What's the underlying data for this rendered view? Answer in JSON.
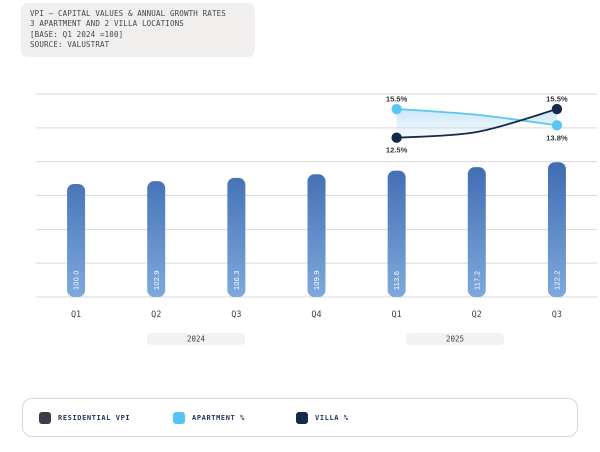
{
  "header": {
    "lines": [
      "VPI – CAPITAL VALUES & ANNUAL GROWTH RATES",
      "3 APARTMENT AND 2 VILLA LOCATIONS",
      "[BASE: Q1 2024 =100]",
      "SOURCE: VALUSTRAT"
    ]
  },
  "chart_data": {
    "type": "bar+line",
    "title": "VPI – CAPITAL VALUES & ANNUAL GROWTH RATES",
    "categories": [
      "Q1",
      "Q2",
      "Q3",
      "Q4",
      "Q1",
      "Q2",
      "Q3"
    ],
    "year_groups": [
      {
        "label": "2024",
        "quarters": [
          "Q1",
          "Q2",
          "Q3",
          "Q4"
        ]
      },
      {
        "label": "2025",
        "quarters": [
          "Q1",
          "Q2",
          "Q3"
        ]
      }
    ],
    "grid": true,
    "y_axis_labels_visible": false,
    "bar_series": {
      "name": "RESIDENTIAL VPI",
      "values": [
        100.0,
        102.9,
        106.3,
        109.9,
        113.6,
        117.2,
        122.2
      ],
      "value_labels": [
        "100.0",
        "102.9",
        "106.3",
        "109.9",
        "113.6",
        "117.2",
        "122.2"
      ],
      "color_top": "#3e6bb0",
      "color_bottom": "#7ea9dd"
    },
    "line_series": [
      {
        "name": "APARTMENT %",
        "color": "#5cc6f2",
        "category_indexes": [
          4,
          5,
          6
        ],
        "values": [
          15.5,
          14.9,
          13.8
        ],
        "values_note": "middle value unlabeled, estimated from curve",
        "point_labels": [
          {
            "point": 0,
            "text": "15.5%",
            "position": "above"
          },
          {
            "point": 2,
            "text": "13.8%",
            "position": "below"
          }
        ]
      },
      {
        "name": "VILLA %",
        "color": "#16294d",
        "category_indexes": [
          4,
          5,
          6
        ],
        "values": [
          12.5,
          13.1,
          15.5
        ],
        "values_note": "middle value unlabeled, estimated from curve",
        "point_labels": [
          {
            "point": 0,
            "text": "12.5%",
            "position": "below"
          },
          {
            "point": 2,
            "text": "15.5%",
            "position": "above"
          }
        ]
      }
    ],
    "band_fill": {
      "from": "#8ecbee",
      "to": "#d5e8f8"
    }
  },
  "legend": {
    "items": [
      {
        "label": "RESIDENTIAL VPI",
        "color": "#3a3f47"
      },
      {
        "label": "APARTMENT %",
        "color": "#55c4f1"
      },
      {
        "label": "VILLA %",
        "color": "#15294b"
      }
    ]
  }
}
